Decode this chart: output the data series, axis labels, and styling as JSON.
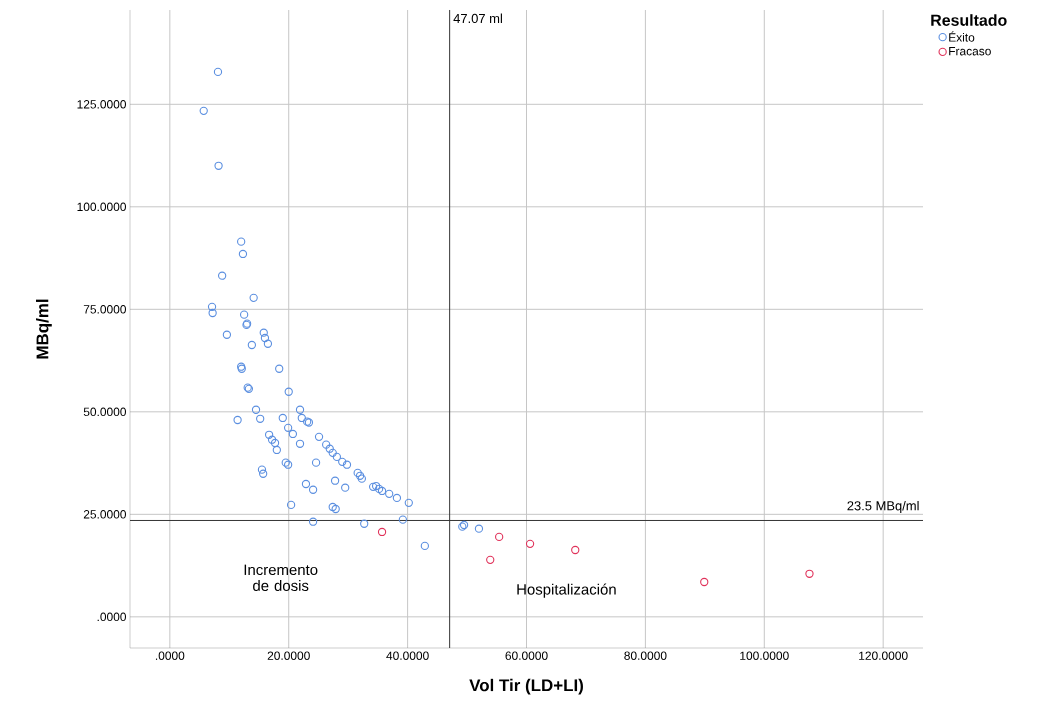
{
  "chart_data": {
    "type": "scatter",
    "xlabel": "Vol Tir (LD+LI)",
    "ylabel": "MBq/ml",
    "legend_title": "Resultado",
    "legend": "top right",
    "marker": "circle",
    "grid": true,
    "xlim": [
      -6.7,
      126.7
    ],
    "ylim": [
      -7.6,
      148
    ],
    "xticks": [
      {
        "value": 0,
        "label": ".0000"
      },
      {
        "value": 20,
        "label": "20.0000"
      },
      {
        "value": 40,
        "label": "40.0000"
      },
      {
        "value": 60,
        "label": "60.0000"
      },
      {
        "value": 80,
        "label": "80.0000"
      },
      {
        "value": 100,
        "label": "100.0000"
      },
      {
        "value": 120,
        "label": "120.0000"
      }
    ],
    "yticks": [
      {
        "value": 0,
        "label": ".0000"
      },
      {
        "value": 25,
        "label": "25.0000"
      },
      {
        "value": 50,
        "label": "50.0000"
      },
      {
        "value": 75,
        "label": "75.0000"
      },
      {
        "value": 100,
        "label": "100.0000"
      },
      {
        "value": 125,
        "label": "125.0000"
      }
    ],
    "series": [
      {
        "name": "Éxito",
        "color": "#5b8fe0",
        "x": [
          8.1,
          5.7,
          8.2,
          12.0,
          12.3,
          8.8,
          14.1,
          7.1,
          7.2,
          12.5,
          13.0,
          12.9,
          9.6,
          15.8,
          16.0,
          16.5,
          13.8,
          18.4,
          12.0,
          12.1,
          13.1,
          13.3,
          20.0,
          14.5,
          21.9,
          11.4,
          15.2,
          19.0,
          22.2,
          23.1,
          23.4,
          19.9,
          20.7,
          25.1,
          16.7,
          17.2,
          17.7,
          26.3,
          21.9,
          26.9,
          18.0,
          27.4,
          28.1,
          29.0,
          29.8,
          19.5,
          19.9,
          24.6,
          15.5,
          15.7,
          31.6,
          32.0,
          32.3,
          27.8,
          34.2,
          34.7,
          35.2,
          35.7,
          22.9,
          24.1,
          29.5,
          36.9,
          38.2,
          40.2,
          20.4,
          27.4,
          27.9,
          24.1,
          32.7,
          39.2,
          42.9,
          49.2,
          49.5,
          52.0
        ],
        "values": [
          132.9,
          123.4,
          110.0,
          91.5,
          88.5,
          83.2,
          77.8,
          75.6,
          74.1,
          73.7,
          71.5,
          71.2,
          68.8,
          69.3,
          68.0,
          66.6,
          66.3,
          60.5,
          61.0,
          60.5,
          55.9,
          55.6,
          54.9,
          50.5,
          50.5,
          48.0,
          48.3,
          48.5,
          48.5,
          47.6,
          47.4,
          46.1,
          44.6,
          43.9,
          44.4,
          43.2,
          42.4,
          42.0,
          42.2,
          41.0,
          40.7,
          40.0,
          39.0,
          37.8,
          37.1,
          37.6,
          37.1,
          37.6,
          35.9,
          34.9,
          35.1,
          34.4,
          33.7,
          33.2,
          31.7,
          31.9,
          31.2,
          30.7,
          32.4,
          31.0,
          31.5,
          30.0,
          29.0,
          27.8,
          27.3,
          26.8,
          26.3,
          23.2,
          22.7,
          23.7,
          17.3,
          22.0,
          22.4,
          21.5
        ]
      },
      {
        "name": "Fracaso",
        "color": "#e0325a",
        "x": [
          35.7,
          55.4,
          53.9,
          60.6,
          68.2,
          89.9,
          107.6
        ],
        "values": [
          20.7,
          19.5,
          13.9,
          17.8,
          16.3,
          8.5,
          10.5
        ]
      }
    ],
    "ref_lines": [
      {
        "axis": "x",
        "value": 47.07,
        "label": "47.07 ml",
        "color": "#333333"
      },
      {
        "axis": "y",
        "value": 23.5,
        "label": "23.5 MBq/ml",
        "color": "#333333"
      }
    ],
    "annotations": [
      "Incremento de dosis",
      "Hospitalización"
    ]
  }
}
